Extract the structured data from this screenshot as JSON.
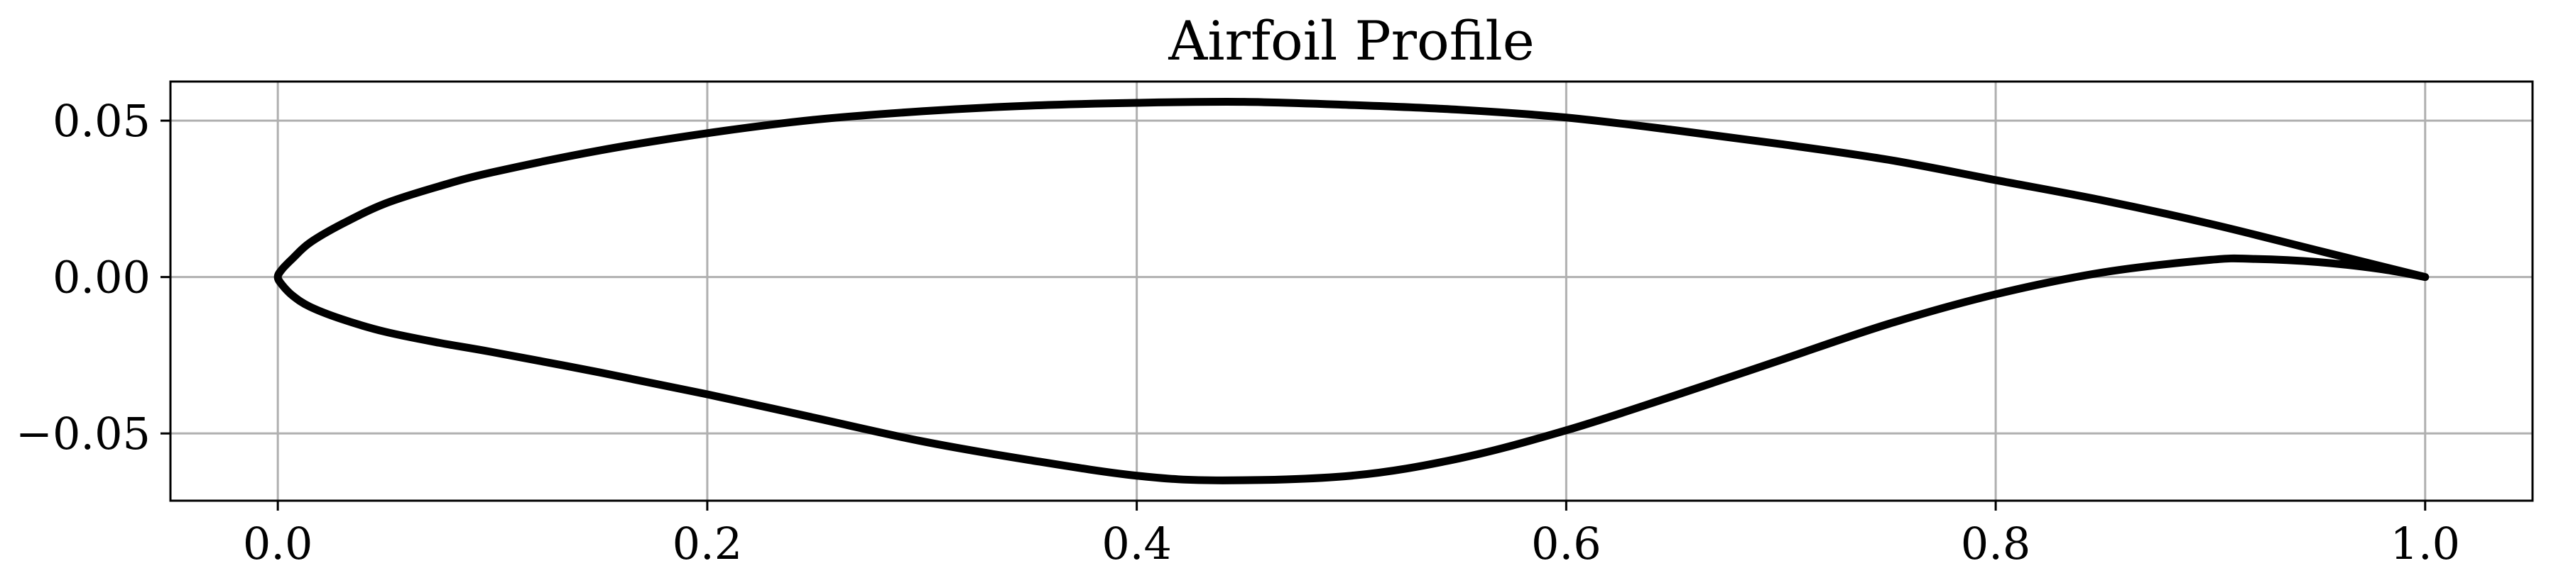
{
  "chart_data": {
    "type": "line",
    "title": "Airfoil Profile",
    "xlabel": "",
    "ylabel": "",
    "xlim": [
      -0.05,
      1.05
    ],
    "ylim": [
      -0.0715,
      0.0625
    ],
    "grid": true,
    "x_ticks": [
      0.0,
      0.2,
      0.4,
      0.6,
      0.8,
      1.0
    ],
    "x_tick_labels": [
      "0.0",
      "0.2",
      "0.4",
      "0.6",
      "0.8",
      "1.0"
    ],
    "y_ticks": [
      -0.05,
      0.0,
      0.05
    ],
    "y_tick_labels": [
      "−0.05",
      "0.00",
      "0.05"
    ],
    "series": [
      {
        "color": "#000000",
        "x": [
          1.0,
          0.95,
          0.9,
          0.85,
          0.8,
          0.75,
          0.7,
          0.65,
          0.6,
          0.55,
          0.5,
          0.45,
          0.4,
          0.35,
          0.3,
          0.25,
          0.2,
          0.15,
          0.1,
          0.075,
          0.05,
          0.03,
          0.015,
          0.007,
          0.002,
          0.0,
          0.002,
          0.007,
          0.015,
          0.03,
          0.05,
          0.075,
          0.1,
          0.15,
          0.2,
          0.25,
          0.3,
          0.35,
          0.4,
          0.44,
          0.5,
          0.55,
          0.6,
          0.65,
          0.7,
          0.75,
          0.8,
          0.85,
          0.9,
          0.92,
          0.95,
          0.98,
          1.0
        ],
        "y": [
          0.0,
          0.0085,
          0.017,
          0.0245,
          0.031,
          0.0375,
          0.0425,
          0.047,
          0.051,
          0.0535,
          0.055,
          0.056,
          0.0557,
          0.0548,
          0.053,
          0.0503,
          0.046,
          0.0405,
          0.0335,
          0.029,
          0.0235,
          0.017,
          0.011,
          0.006,
          0.0025,
          0.0,
          -0.0025,
          -0.006,
          -0.0095,
          -0.0135,
          -0.0175,
          -0.021,
          -0.024,
          -0.0305,
          -0.0375,
          -0.045,
          -0.0525,
          -0.0585,
          -0.0635,
          -0.065,
          -0.0635,
          -0.058,
          -0.049,
          -0.038,
          -0.0265,
          -0.015,
          -0.0055,
          0.0015,
          0.0055,
          0.0058,
          0.0048,
          0.0025,
          0.0
        ]
      }
    ]
  }
}
